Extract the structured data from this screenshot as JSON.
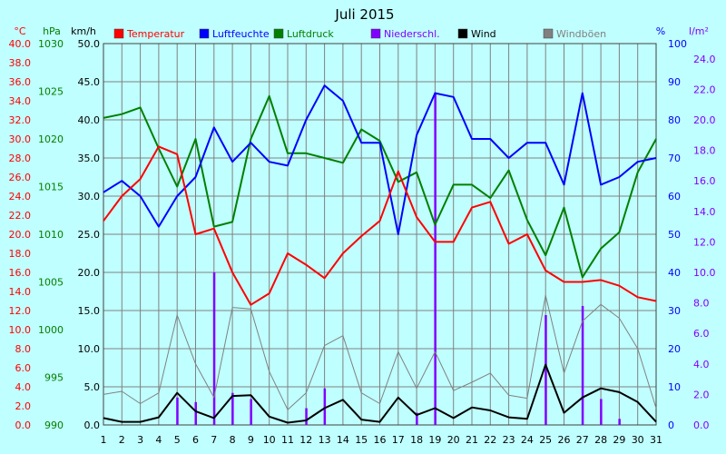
{
  "chart_data": {
    "type": "line",
    "title": "Juli 2015",
    "categories": [
      "1",
      "2",
      "3",
      "4",
      "5",
      "6",
      "7",
      "8",
      "9",
      "10",
      "11",
      "12",
      "13",
      "14",
      "15",
      "16",
      "17",
      "18",
      "19",
      "20",
      "21",
      "22",
      "23",
      "24",
      "25",
      "26",
      "27",
      "28",
      "29",
      "30",
      "31"
    ],
    "axes": {
      "temperature": {
        "unit": "°C",
        "min": 0,
        "max": 40,
        "ticks": [
          "0.0",
          "2.0",
          "4.0",
          "6.0",
          "8.0",
          "10.0",
          "12.0",
          "14.0",
          "16.0",
          "18.0",
          "20.0",
          "22.0",
          "24.0",
          "26.0",
          "28.0",
          "30.0",
          "32.0",
          "34.0",
          "36.0",
          "38.0",
          "40.0"
        ],
        "color": "#ff0000"
      },
      "pressure": {
        "unit": "hPa",
        "min": 990,
        "max": 1030,
        "ticks": [
          "990",
          "995",
          "1000",
          "1005",
          "1010",
          "1015",
          "1020",
          "1025",
          "1030"
        ],
        "color": "#008000"
      },
      "wind": {
        "unit": "km/h",
        "min": 0,
        "max": 50,
        "ticks": [
          "0.0",
          "5.0",
          "10.0",
          "15.0",
          "20.0",
          "25.0",
          "30.0",
          "35.0",
          "40.0",
          "45.0",
          "50.0"
        ],
        "color": "#000000"
      },
      "humidity": {
        "unit": "%",
        "min": 0,
        "max": 100,
        "ticks": [
          "0",
          "10",
          "20",
          "30",
          "40",
          "50",
          "60",
          "70",
          "80",
          "90",
          "100"
        ],
        "color": "#0000ff"
      },
      "precipitation": {
        "unit": "l/m²",
        "min": 0,
        "max": 25,
        "ticks": [
          "0.0",
          "2.0",
          "4.0",
          "6.0",
          "8.0",
          "10.0",
          "12.0",
          "14.0",
          "16.0",
          "18.0",
          "20.0",
          "22.0",
          "24.0"
        ],
        "color": "#8000ff"
      }
    },
    "series": [
      {
        "name": "Temperatur",
        "axis": "temperature",
        "color": "#ff0000",
        "kind": "line",
        "values": [
          21.4,
          24.0,
          25.8,
          29.2,
          28.4,
          20.0,
          20.6,
          16.0,
          12.6,
          13.8,
          18.0,
          16.8,
          15.4,
          18.0,
          19.8,
          21.4,
          26.6,
          21.8,
          19.2,
          19.2,
          22.8,
          23.4,
          19.0,
          20.0,
          16.2,
          15.0,
          15.0,
          15.2,
          14.6,
          13.4,
          13.0
        ]
      },
      {
        "name": "Luftfeuchte",
        "axis": "humidity",
        "color": "#0000ff",
        "kind": "line",
        "values": [
          61,
          64,
          60,
          52,
          60,
          65,
          78,
          69,
          74,
          69,
          68,
          80,
          89,
          85,
          74,
          74,
          50,
          76,
          87,
          86,
          75,
          75,
          70,
          74,
          74,
          63,
          87,
          63,
          65,
          69,
          70
        ]
      },
      {
        "name": "Luftdruck",
        "axis": "pressure",
        "color": "#008000",
        "kind": "line",
        "values": [
          1022.2,
          1022.6,
          1023.3,
          1019.0,
          1015.0,
          1020.0,
          1010.8,
          1011.3,
          1020.0,
          1024.5,
          1018.5,
          1018.5,
          1018.0,
          1017.5,
          1021.0,
          1019.8,
          1015.5,
          1016.5,
          1011.0,
          1015.2,
          1015.2,
          1013.8,
          1016.7,
          1011.5,
          1007.8,
          1012.8,
          1005.5,
          1008.5,
          1010.2,
          1016.5,
          1020.0
        ]
      },
      {
        "name": "Niederschl.",
        "axis": "precipitation",
        "color": "#8000ff",
        "kind": "bar",
        "values": [
          0,
          0,
          0,
          0,
          1.8,
          1.5,
          10.0,
          2.1,
          1.7,
          0,
          0,
          1.1,
          2.4,
          0,
          0,
          0,
          0,
          0.8,
          21.8,
          0,
          0,
          0,
          0,
          0,
          7.2,
          0,
          7.8,
          1.7,
          0.4,
          0,
          0
        ]
      },
      {
        "name": "Wind",
        "axis": "wind",
        "color": "#000000",
        "kind": "line",
        "values": [
          0.9,
          0.4,
          0.4,
          1.0,
          4.2,
          1.8,
          0.9,
          3.8,
          3.9,
          1.1,
          0.3,
          0.6,
          2.2,
          3.3,
          0.7,
          0.4,
          3.6,
          1.3,
          2.2,
          0.9,
          2.3,
          1.9,
          1.0,
          0.8,
          7.9,
          1.6,
          3.6,
          4.8,
          4.3,
          3.0,
          0.4
        ]
      },
      {
        "name": "Windböen",
        "axis": "wind",
        "color": "#808080",
        "kind": "line",
        "values": [
          4.0,
          4.4,
          2.8,
          4.2,
          14.4,
          8.0,
          3.6,
          15.4,
          15.2,
          7.0,
          2.0,
          4.2,
          10.4,
          11.7,
          4.2,
          2.8,
          9.6,
          4.8,
          9.6,
          4.5,
          5.6,
          6.8,
          3.9,
          3.5,
          17.0,
          6.8,
          13.6,
          15.8,
          14.0,
          10.0,
          2.2
        ]
      }
    ],
    "grid": true,
    "legend_position": "top"
  }
}
